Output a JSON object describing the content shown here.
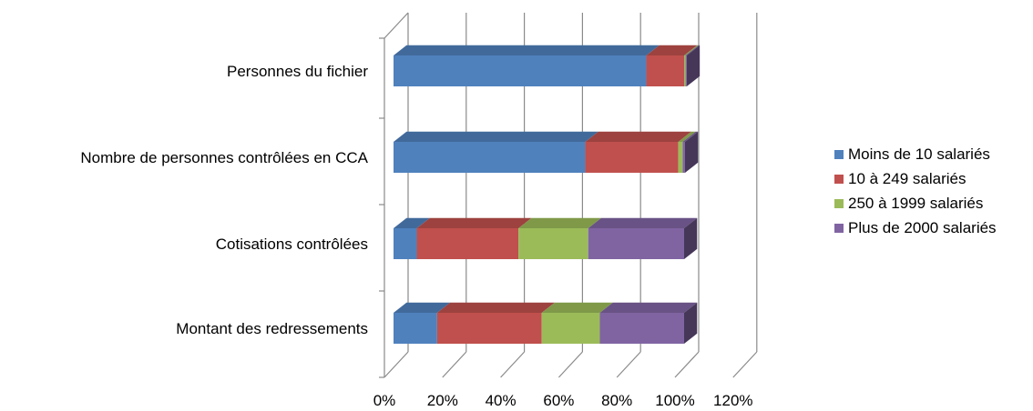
{
  "chart_data": {
    "type": "bar",
    "orientation": "horizontal",
    "stacked": true,
    "three_d": true,
    "categories": [
      "Personnes du fichier",
      "Nombre de personnes contrôlées en CCA",
      "Cotisations contrôlées",
      "Montant des redressements"
    ],
    "series": [
      {
        "name": "Moins de 10 salariés",
        "color": "#4F81BD",
        "values": [
          0.87,
          0.66,
          0.08,
          0.15
        ]
      },
      {
        "name": "10 à 249 salariés",
        "color": "#C0504D",
        "values": [
          0.13,
          0.32,
          0.35,
          0.36
        ]
      },
      {
        "name": "250 à 1999 salariés",
        "color": "#9BBB59",
        "values": [
          0.005,
          0.015,
          0.24,
          0.2
        ]
      },
      {
        "name": "Plus de 2000 salariés",
        "color": "#8064A2",
        "values": [
          0.004,
          0.008,
          0.33,
          0.29
        ]
      }
    ],
    "xticks": [
      "0%",
      "20%",
      "40%",
      "60%",
      "80%",
      "100%",
      "120%"
    ],
    "xlim": [
      0,
      1.2
    ],
    "grid": true,
    "legend_position": "right",
    "title": "",
    "xlabel": "",
    "ylabel": ""
  }
}
